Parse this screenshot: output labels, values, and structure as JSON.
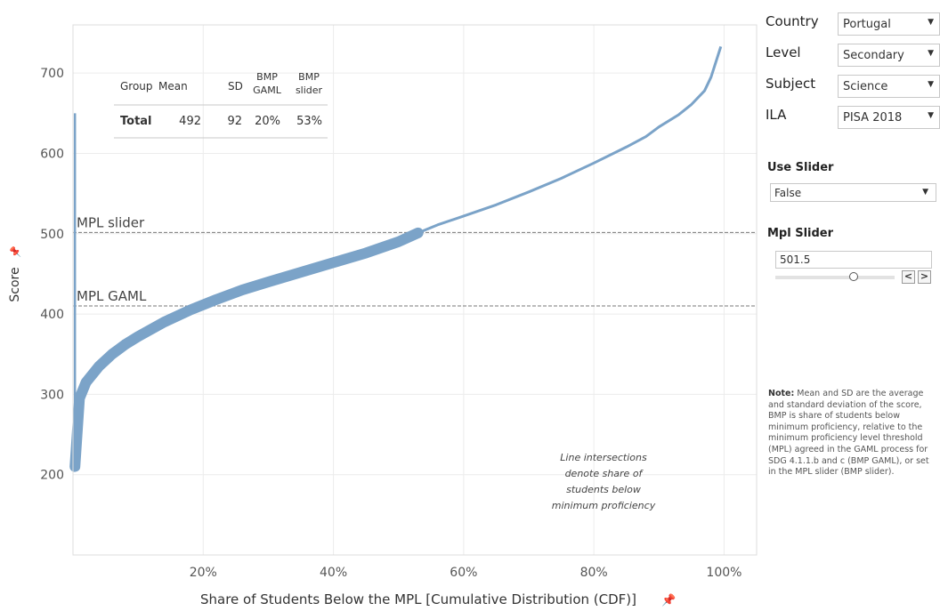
{
  "controls": {
    "country": {
      "label": "Country",
      "value": "Portugal"
    },
    "level": {
      "label": "Level",
      "value": "Secondary"
    },
    "subject": {
      "label": "Subject",
      "value": "Science"
    },
    "ila": {
      "label": "ILA",
      "value": "PISA 2018"
    },
    "use_slider": {
      "label": "Use Slider",
      "value": "False"
    },
    "mpl_slider": {
      "label": "Mpl Slider",
      "value": "501.5"
    }
  },
  "note": {
    "prefix": "Note:",
    "text": "Mean and SD are the average and standard deviation of the score, BMP is share of students below minimum proficiency, relative to the minimum proficiency level threshold (MPL) agreed in the GAML process for SDG 4.1.1.b and c (BMP GAML), or set in the MPL slider (BMP slider)."
  },
  "summary_table": {
    "headers": [
      "Group",
      "Mean",
      "SD",
      "BMP GAML",
      "BMP slider"
    ],
    "rows": [
      [
        "Total",
        "492",
        "92",
        "20%",
        "53%"
      ]
    ]
  },
  "colors": {
    "curve": "#7ba3c8",
    "grid": "#ececec",
    "ref_line": "#777777"
  },
  "chart_data": {
    "type": "line",
    "xlabel": "Share of Students Below the MPL [Cumulative Distribution (CDF)]",
    "ylabel": "Score",
    "xlim": [
      0,
      105
    ],
    "ylim": [
      100,
      760
    ],
    "x_ticks": [
      20,
      40,
      60,
      80,
      100
    ],
    "x_tick_labels": [
      "20%",
      "40%",
      "60%",
      "80%",
      "100%"
    ],
    "y_ticks": [
      200,
      300,
      400,
      500,
      600,
      700
    ],
    "y_tick_labels": [
      "200",
      "300",
      "400",
      "500",
      "600",
      "700"
    ],
    "grid": true,
    "series": [
      {
        "x": [
          0.3,
          1,
          2,
          4,
          6,
          8,
          10,
          14,
          18,
          22,
          26,
          30,
          35,
          40,
          45,
          50,
          53,
          56,
          60,
          65,
          70,
          75,
          80,
          85,
          88,
          90,
          93,
          95,
          97,
          98,
          99.5
        ],
        "y": [
          210,
          295,
          315,
          335,
          350,
          362,
          372,
          390,
          405,
          418,
          430,
          440,
          452,
          464,
          476,
          490,
          501,
          511,
          522,
          536,
          552,
          569,
          588,
          608,
          621,
          633,
          648,
          661,
          678,
          695,
          733
        ]
      }
    ],
    "emphasized_segment_x": [
      0.3,
      53
    ],
    "reference_lines": [
      {
        "label": "MPL slider",
        "y": 501.5
      },
      {
        "label": "MPL GAML",
        "y": 410
      }
    ],
    "annotation": "Line intersections denote share of students below minimum proficiency"
  }
}
